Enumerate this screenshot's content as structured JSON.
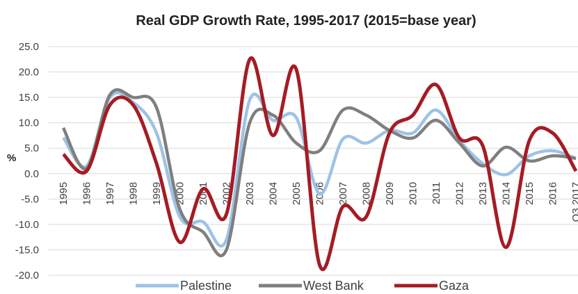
{
  "chart_data": {
    "type": "line",
    "title": "Real GDP Growth Rate, 1995-2017 (2015=base year)",
    "y_label": "%",
    "categories": [
      "1995",
      "1996",
      "1997",
      "1998",
      "1999",
      "2000",
      "2001",
      "2002",
      "2003",
      "2004",
      "2005",
      "2006",
      "2007",
      "2008",
      "2009",
      "2010",
      "2011",
      "2012",
      "2013",
      "2014",
      "2015",
      "2016",
      "Q3 2017"
    ],
    "series": [
      {
        "name": "Palestine",
        "color": "#9dc3e6",
        "values": [
          7.1,
          1.5,
          15.0,
          14.0,
          8.0,
          -8.5,
          -9.5,
          -13.0,
          14.5,
          10.5,
          11.0,
          -4.0,
          6.8,
          6.0,
          8.5,
          8.0,
          12.5,
          6.5,
          2.0,
          -0.2,
          3.5,
          4.5,
          3.0
        ]
      },
      {
        "name": "West Bank",
        "color": "#7f7f7f",
        "values": [
          9.0,
          1.0,
          15.5,
          15.0,
          13.0,
          -7.0,
          -11.5,
          -15.0,
          10.0,
          11.5,
          6.0,
          4.5,
          12.5,
          11.5,
          8.5,
          7.0,
          10.5,
          6.0,
          1.5,
          5.2,
          2.5,
          3.5,
          3.0
        ]
      },
      {
        "name": "Gaza",
        "color": "#a51c24",
        "values": [
          3.8,
          0.5,
          13.5,
          13.5,
          2.0,
          -13.5,
          -3.0,
          -8.0,
          22.5,
          7.5,
          20.5,
          -18.0,
          -6.5,
          -8.5,
          8.0,
          11.5,
          17.5,
          7.0,
          5.5,
          -14.5,
          6.5,
          8.0,
          0.5
        ]
      }
    ],
    "ylim": [
      -20,
      25
    ],
    "yticks": [
      {
        "value": -20,
        "label": "-20.0"
      },
      {
        "value": -15,
        "label": "-15.0"
      },
      {
        "value": -10,
        "label": "-10.0"
      },
      {
        "value": -5,
        "label": "-5.0"
      },
      {
        "value": 0,
        "label": "0.0"
      },
      {
        "value": 5,
        "label": "5.0"
      },
      {
        "value": 10,
        "label": "10.0"
      },
      {
        "value": 15,
        "label": "15.0"
      },
      {
        "value": 20,
        "label": "20.0"
      },
      {
        "value": 25,
        "label": "25.0"
      }
    ],
    "grid": true,
    "legend": "bottom"
  }
}
